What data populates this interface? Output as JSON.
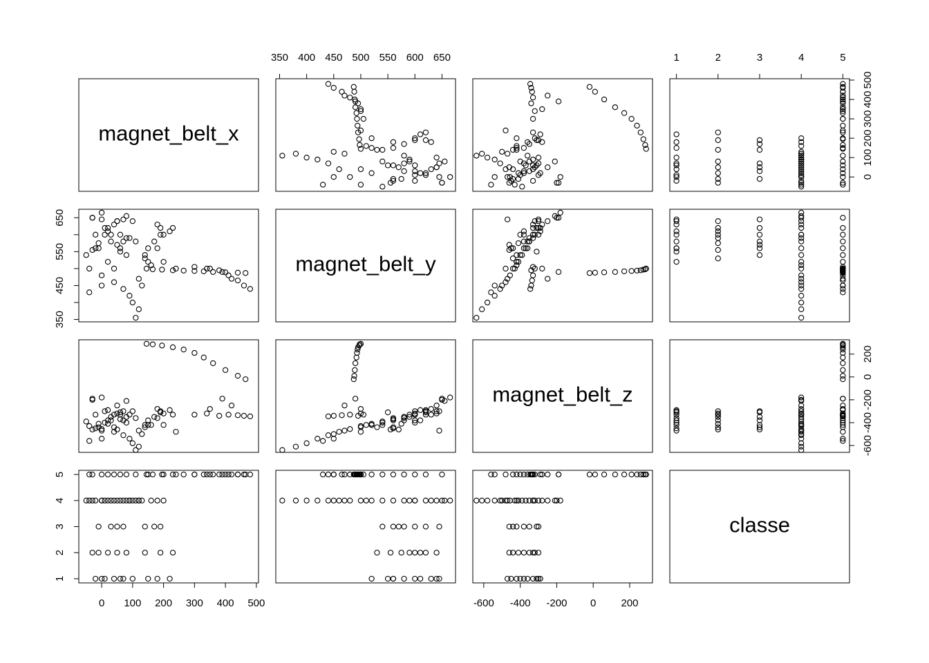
{
  "chart_data": {
    "type": "scatter_matrix",
    "color": "#000000",
    "variables": [
      {
        "name": "magnet_belt_x",
        "lim": [
          -74,
          507
        ],
        "ticks": [
          0,
          100,
          200,
          300,
          400,
          500
        ],
        "values": [
          -20,
          10,
          40,
          70,
          100,
          150,
          180,
          220,
          0,
          60,
          -30,
          20,
          50,
          80,
          140,
          190,
          230,
          -10,
          -10,
          30,
          70,
          140,
          170,
          190,
          50,
          110,
          120,
          100,
          90,
          70,
          40,
          0,
          -40,
          20,
          -50,
          60,
          30,
          -20,
          10,
          50,
          80,
          0,
          160,
          200,
          180,
          130,
          120,
          -30,
          90,
          -40,
          0,
          40,
          80,
          110,
          20,
          -30,
          60,
          150,
          200,
          240,
          145,
          165,
          195,
          230,
          265,
          300,
          330,
          360,
          400,
          440,
          465,
          300,
          340,
          380,
          410,
          440,
          460,
          480,
          420,
          390,
          350
        ]
      },
      {
        "name": "magnet_belt_y",
        "lim": [
          343,
          675
        ],
        "ticks": [
          350,
          400,
          450,
          500,
          550,
          600,
          650
        ],
        "values": [
          560,
          600,
          630,
          580,
          640,
          520,
          560,
          610,
          645,
          550,
          555,
          610,
          640,
          590,
          530,
          600,
          620,
          575,
          560,
          600,
          645,
          540,
          580,
          620,
          570,
          355,
          380,
          400,
          420,
          440,
          460,
          480,
          500,
          520,
          540,
          560,
          580,
          600,
          620,
          640,
          655,
          665,
          510,
          600,
          630,
          450,
          470,
          650,
          590,
          430,
          450,
          500,
          540,
          580,
          620,
          650,
          600,
          560,
          520,
          500,
          500,
          498,
          497,
          495,
          494,
          493,
          492,
          490,
          489,
          488,
          487,
          505,
          500,
          495,
          480,
          465,
          450,
          440,
          470,
          490,
          500
        ]
      },
      {
        "name": "magnet_belt_z",
        "lim": [
          -660,
          325
        ],
        "ticks": [
          -600,
          -400,
          -200,
          0,
          200
        ],
        "values": [
          -450,
          -400,
          -330,
          -380,
          -300,
          -420,
          -360,
          -290,
          -470,
          -310,
          -460,
          -380,
          -320,
          -350,
          -440,
          -300,
          -330,
          -410,
          -440,
          -380,
          -300,
          -420,
          -350,
          -310,
          -460,
          -640,
          -610,
          -580,
          -540,
          -510,
          -480,
          -456,
          -430,
          -410,
          -390,
          -370,
          -350,
          -330,
          -300,
          -250,
          -210,
          -180,
          -420,
          -320,
          -280,
          -500,
          -470,
          -200,
          -330,
          -560,
          -540,
          -440,
          -400,
          -360,
          -290,
          -190,
          -330,
          -380,
          -420,
          -480,
          290,
          285,
          275,
          260,
          240,
          210,
          170,
          120,
          60,
          10,
          -20,
          -330,
          -320,
          -340,
          -330,
          -335,
          -340,
          -345,
          -250,
          -190,
          -280
        ]
      },
      {
        "name": "classe",
        "lim": [
          0.84,
          5.16
        ],
        "ticks": [
          1,
          2,
          3,
          4,
          5
        ],
        "values": [
          1,
          1,
          1,
          1,
          1,
          1,
          1,
          1,
          1,
          1,
          2,
          2,
          2,
          2,
          2,
          2,
          2,
          2,
          3,
          3,
          3,
          3,
          3,
          3,
          3,
          4,
          4,
          4,
          4,
          4,
          4,
          4,
          4,
          4,
          4,
          4,
          4,
          4,
          4,
          4,
          4,
          4,
          4,
          4,
          4,
          4,
          4,
          4,
          4,
          5,
          5,
          5,
          5,
          5,
          5,
          5,
          5,
          5,
          5,
          5,
          5,
          5,
          5,
          5,
          5,
          5,
          5,
          5,
          5,
          5,
          5,
          5,
          5,
          5,
          5,
          5,
          5,
          5,
          5,
          5,
          5
        ]
      }
    ]
  }
}
